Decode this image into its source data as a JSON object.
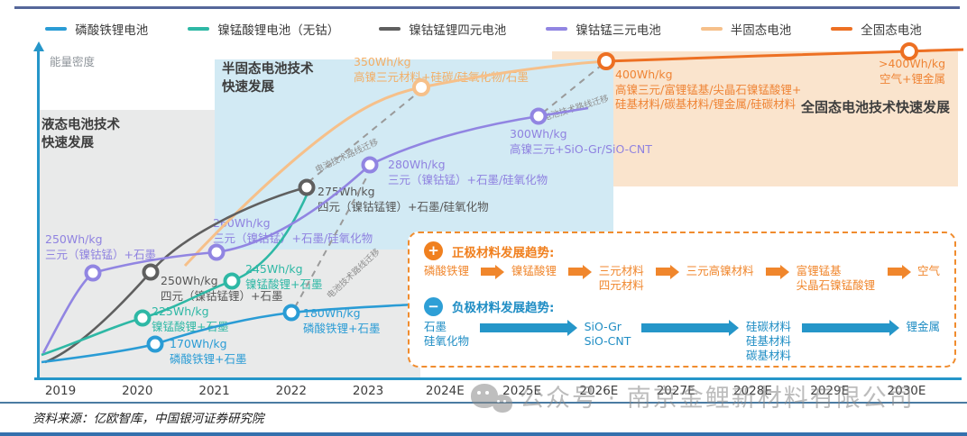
{
  "legend": {
    "items": [
      {
        "label": "磷酸铁锂电池",
        "color": "#2a9cd5"
      },
      {
        "label": "镍锰酸锂电池（无钴）",
        "color": "#2eb8a5"
      },
      {
        "label": "镍钴锰锂四元电池",
        "color": "#5f5f5f"
      },
      {
        "label": "镍钴锰三元电池",
        "color": "#9185e2"
      },
      {
        "label": "半固态电池",
        "color": "#f6c08a"
      },
      {
        "label": "全固态电池",
        "color": "#ed7023"
      }
    ]
  },
  "axis": {
    "y_label": "能量密度",
    "x_ticks": [
      "2019",
      "2020",
      "2021",
      "2022",
      "2023",
      "2024E",
      "2025E",
      "2026E",
      "2027E",
      "2028E",
      "2029E",
      "2030E"
    ]
  },
  "regions": {
    "liquid": "液态电池技术\n快速发展",
    "semi_solid": "半固态电池技术\n快速发展",
    "solid": "全固态电池技术快速发展"
  },
  "migration_note": "电池技术路线迁移",
  "point_labels": {
    "purple_250": {
      "value": "250Wh/kg",
      "materials": "三元（镍钴锰）+石墨"
    },
    "gray_250": {
      "value": "250Wh/kg",
      "materials": "四元（镍钴锰锂）+石墨"
    },
    "purple_260": {
      "value": "260Wh/kg",
      "materials": "三元（镍钴锰）+石墨/硅氧化物"
    },
    "teal_225": {
      "value": "225Wh/kg",
      "materials": "镍锰酸锂+石墨"
    },
    "teal_245": {
      "value": "245Wh/kg",
      "materials": "镍锰酸锂+石墨"
    },
    "blue_170": {
      "value": "170Wh/kg",
      "materials": "磷酸铁锂+石墨"
    },
    "blue_180": {
      "value": "180Wh/kg",
      "materials": "磷酸铁锂+石墨"
    },
    "gray_275": {
      "value": "275Wh/kg",
      "materials": "四元（镍钴锰锂）+石墨/硅氧化物"
    },
    "purple_280": {
      "value": "280Wh/kg",
      "materials": "三元（镍钴锰）+石墨/硅氧化物"
    },
    "purple_300": {
      "value": "300Wh/kg",
      "materials": "高镍三元+SiO-Gr/SiO-CNT"
    },
    "peach_350": {
      "value": "350Wh/kg",
      "materials": "高镍三元材料+硅碳/硅氧化物/石墨"
    },
    "orange_400": {
      "value": "400Wh/kg",
      "materials": "高镍三元/富锂锰基/尖晶石镍锰酸锂+\n硅基材料/碳基材料/锂金属/硅碳材料"
    },
    "orange_400p": {
      "value": ">400Wh/kg",
      "materials": "空气+锂金属"
    }
  },
  "trend_box": {
    "cathode": {
      "icon": "+",
      "title": "正极材料发展趋势:",
      "items": [
        "磷酸铁锂",
        "镍锰酸锂",
        "三元材料\n四元材料",
        "三元高镍材料",
        "富锂锰基\n尖晶石镍锰酸锂",
        "空气"
      ],
      "accent_color": "#f0862c"
    },
    "anode": {
      "icon": "−",
      "title": "负极材料发展趋势:",
      "items": [
        "石墨\n硅氧化物",
        "SiO-Gr\nSiO-CNT",
        "硅碳材料\n硅基材料\n碳基材料",
        "锂金属"
      ],
      "accent_color": "#1f8dc4"
    }
  },
  "watermark": {
    "icon": "wechat-icon",
    "text": "公众号 · 南京金鲤新材料有限公司"
  },
  "source_note": "资料来源：亿欧智库，中国银河证券研究院",
  "chart_data": {
    "type": "line",
    "title": "",
    "xlabel": "",
    "ylabel": "能量密度",
    "x_ticks": [
      "2019",
      "2020",
      "2021",
      "2022",
      "2023",
      "2024E",
      "2025E",
      "2026E",
      "2027E",
      "2028E",
      "2029E",
      "2030E"
    ],
    "grid": false,
    "legend_position": "top",
    "background_regions": [
      {
        "label": "液态电池技术快速发展",
        "color": "#e9eaea",
        "x_span": [
          "2019",
          "2024E"
        ]
      },
      {
        "label": "半固态电池技术快速发展",
        "color": "#d2eaf4",
        "x_span": [
          "2021",
          "2026E"
        ]
      },
      {
        "label": "全固态电池技术快速发展",
        "color": "#fae4cd",
        "x_span": [
          "2025E",
          "2030E"
        ]
      }
    ],
    "series": [
      {
        "name": "磷酸铁锂电池",
        "color": "#2a9cd5",
        "labeled_points": [
          {
            "year": "2020",
            "energy_density": "170Wh/kg",
            "materials": "磷酸铁锂+石墨"
          },
          {
            "year": "2022",
            "energy_density": "180Wh/kg",
            "materials": "磷酸铁锂+石墨"
          }
        ]
      },
      {
        "name": "镍锰酸锂电池（无钴）",
        "color": "#2eb8a5",
        "labeled_points": [
          {
            "year": "2020",
            "energy_density": "225Wh/kg",
            "materials": "镍锰酸锂+石墨"
          },
          {
            "year": "2021",
            "energy_density": "245Wh/kg",
            "materials": "镍锰酸锂+石墨"
          }
        ]
      },
      {
        "name": "镍钴锰锂四元电池",
        "color": "#5f5f5f",
        "labeled_points": [
          {
            "year": "2020",
            "energy_density": "250Wh/kg",
            "materials": "四元（镍钴锰锂）+石墨"
          },
          {
            "year": "2022",
            "energy_density": "275Wh/kg",
            "materials": "四元（镍钴锰锂）+石墨/硅氧化物"
          }
        ]
      },
      {
        "name": "镍钴锰三元电池",
        "color": "#9185e2",
        "labeled_points": [
          {
            "year": "2019",
            "energy_density": "250Wh/kg",
            "materials": "三元（镍钴锰）+石墨"
          },
          {
            "year": "2021",
            "energy_density": "260Wh/kg",
            "materials": "三元（镍钴锰）+石墨/硅氧化物"
          },
          {
            "year": "2023",
            "energy_density": "280Wh/kg",
            "materials": "三元（镍钴锰）+石墨/硅氧化物"
          },
          {
            "year": "2025E",
            "energy_density": "300Wh/kg",
            "materials": "高镍三元+SiO-Gr/SiO-CNT"
          }
        ]
      },
      {
        "name": "半固态电池",
        "color": "#f6c08a",
        "labeled_points": [
          {
            "year": "2024E",
            "energy_density": "350Wh/kg",
            "materials": "高镍三元材料+硅碳/硅氧化物/石墨"
          }
        ]
      },
      {
        "name": "全固态电池",
        "color": "#ed7023",
        "labeled_points": [
          {
            "year": "2026E",
            "energy_density": "400Wh/kg",
            "materials": "高镍三元/富锂锰基/尖晶石镍锰酸锂+硅基材料/碳基材料/锂金属/硅碳材料"
          },
          {
            "year": "2030E",
            "energy_density": ">400Wh/kg",
            "materials": "空气+锂金属"
          }
        ]
      }
    ],
    "annotations": [
      "电池技术路线迁移",
      "电池技术路线迁移",
      "电池技术路线迁移"
    ],
    "cathode_trend": [
      "磷酸铁锂",
      "镍锰酸锂",
      "三元材料/四元材料",
      "三元高镍材料",
      "富锂锰基/尖晶石镍锰酸锂",
      "空气"
    ],
    "anode_trend": [
      "石墨/硅氧化物",
      "SiO-Gr/SiO-CNT",
      "硅碳材料/硅基材料/碳基材料",
      "锂金属"
    ]
  }
}
